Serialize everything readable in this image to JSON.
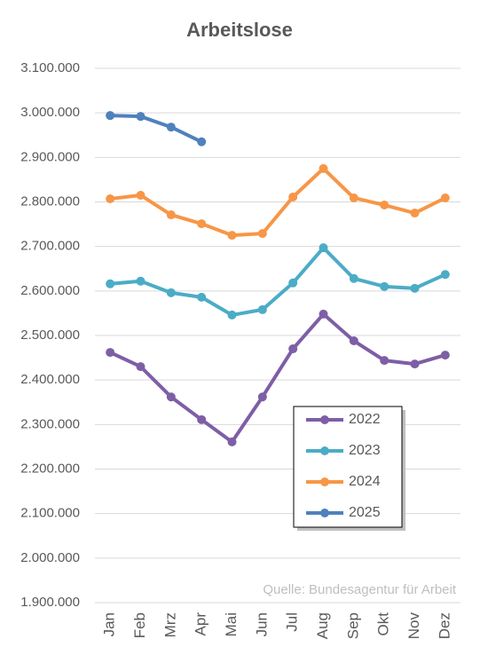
{
  "chart_data": {
    "type": "line",
    "title": "Arbeitslose",
    "source": "Quelle: Bundesagentur für Arbeit",
    "categories": [
      "Jan",
      "Feb",
      "Mrz",
      "Apr",
      "Mai",
      "Jun",
      "Jul",
      "Aug",
      "Sep",
      "Okt",
      "Nov",
      "Dez"
    ],
    "series": [
      {
        "name": "2022",
        "color": "#7e5ea6",
        "values": [
          2462000,
          2430000,
          2362000,
          2311000,
          2261000,
          2362000,
          2470000,
          2548000,
          2488000,
          2444000,
          2436000,
          2456000
        ]
      },
      {
        "name": "2023",
        "color": "#4bacc6",
        "values": [
          2616000,
          2622000,
          2596000,
          2586000,
          2546000,
          2558000,
          2618000,
          2697000,
          2628000,
          2610000,
          2606000,
          2637000
        ]
      },
      {
        "name": "2024",
        "color": "#f79646",
        "values": [
          2807000,
          2815000,
          2771000,
          2751000,
          2725000,
          2729000,
          2811000,
          2875000,
          2809000,
          2793000,
          2775000,
          2809000
        ]
      },
      {
        "name": "2025",
        "color": "#4f81bd",
        "values": [
          2994000,
          2992000,
          2968000,
          2935000,
          null,
          null,
          null,
          null,
          null,
          null,
          null,
          null
        ]
      }
    ],
    "ylim": [
      1900000,
      3100000
    ],
    "yticks": [
      {
        "value": 1900000,
        "label": "1.900.000"
      },
      {
        "value": 2000000,
        "label": "2.000.000"
      },
      {
        "value": 2100000,
        "label": "2.100.000"
      },
      {
        "value": 2200000,
        "label": "2.200.000"
      },
      {
        "value": 2300000,
        "label": "2.300.000"
      },
      {
        "value": 2400000,
        "label": "2.400.000"
      },
      {
        "value": 2500000,
        "label": "2.500.000"
      },
      {
        "value": 2600000,
        "label": "2.600.000"
      },
      {
        "value": 2700000,
        "label": "2.700.000"
      },
      {
        "value": 2800000,
        "label": "2.800.000"
      },
      {
        "value": 2900000,
        "label": "2.900.000"
      },
      {
        "value": 3000000,
        "label": "3.000.000"
      },
      {
        "value": 3100000,
        "label": "3.100.000"
      }
    ],
    "grid": true,
    "legend": "lower right"
  }
}
